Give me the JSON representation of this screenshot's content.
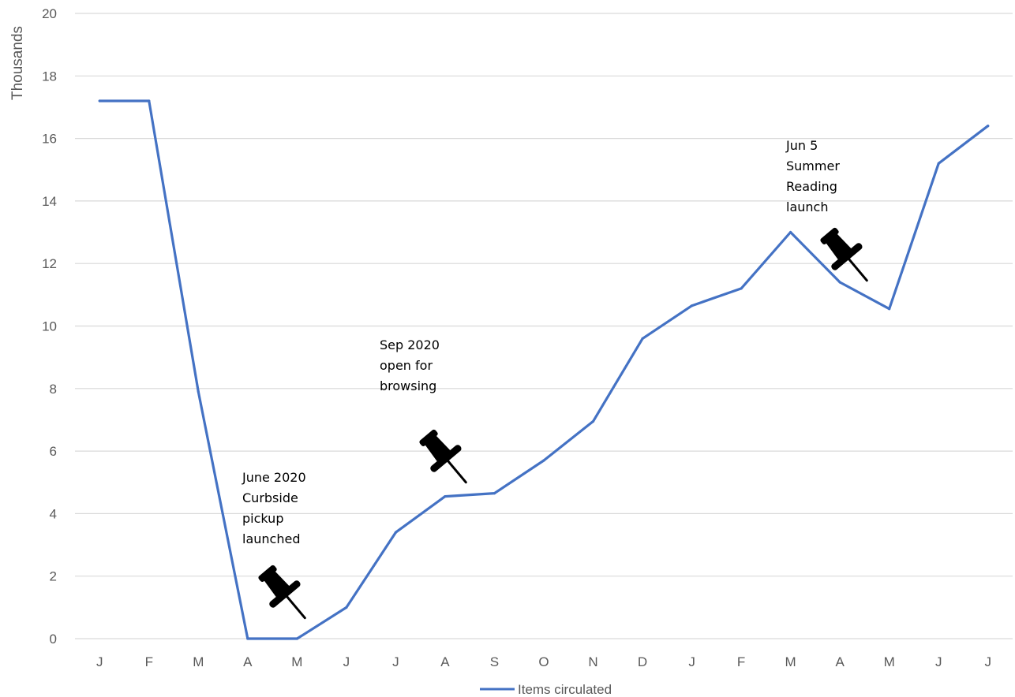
{
  "chart_data": {
    "type": "line",
    "ylabel": "Thousands",
    "xlabel": "",
    "ylim": [
      0,
      20
    ],
    "yticks": [
      0,
      2,
      4,
      6,
      8,
      10,
      12,
      14,
      16,
      18,
      20
    ],
    "grid": "horizontal",
    "legend_position": "bottom",
    "categories": [
      "J",
      "F",
      "M",
      "A",
      "M",
      "J",
      "J",
      "A",
      "S",
      "O",
      "N",
      "D",
      "J",
      "F",
      "M",
      "A",
      "M",
      "J",
      "J"
    ],
    "series": [
      {
        "name": "Items circulated",
        "color": "#4472c4",
        "values": [
          17.2,
          17.2,
          7.9,
          0,
          0,
          1.0,
          3.4,
          4.55,
          4.65,
          5.7,
          6.95,
          9.6,
          10.65,
          11.2,
          13.0,
          11.4,
          10.55,
          15.2,
          16.4
        ]
      }
    ],
    "annotations": [
      {
        "lines": [
          "June 2020",
          "Curbside",
          "pickup",
          "launched"
        ],
        "icon": "pushpin-icon"
      },
      {
        "lines": [
          "Sep 2020",
          "open for",
          "browsing"
        ],
        "icon": "pushpin-icon"
      },
      {
        "lines": [
          "Jun 5",
          "Summer",
          "Reading",
          "launch"
        ],
        "icon": "pushpin-icon"
      }
    ]
  }
}
